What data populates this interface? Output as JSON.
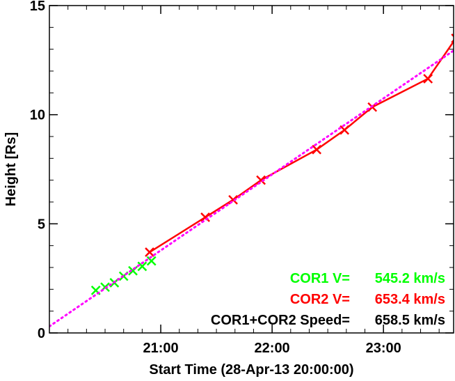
{
  "chart_data": {
    "type": "scatter",
    "xlabel": "Start Time (28-Apr-13 20:00:00)",
    "ylabel": "Height [Rs]",
    "xlim_hours": [
      20.0,
      23.63
    ],
    "ylim": [
      0,
      15
    ],
    "x_ticks": [
      {
        "value": 21,
        "label": "21:00"
      },
      {
        "value": 22,
        "label": "22:00"
      },
      {
        "value": 23,
        "label": "23:00"
      }
    ],
    "y_ticks": [
      {
        "value": 0,
        "label": "0"
      },
      {
        "value": 5,
        "label": "5"
      },
      {
        "value": 10,
        "label": "10"
      },
      {
        "value": 15,
        "label": "15"
      }
    ],
    "series": [
      {
        "name": "COR1",
        "color": "#00ff00",
        "marker": "x",
        "line": false,
        "x": [
          "20:25",
          "20:30",
          "20:35",
          "20:40",
          "20:45",
          "20:50",
          "20:55"
        ],
        "y": [
          1.95,
          2.1,
          2.3,
          2.6,
          2.85,
          3.05,
          3.3
        ]
      },
      {
        "name": "COR2",
        "color": "#ff0000",
        "marker": "x",
        "line": true,
        "x": [
          "20:54",
          "21:24",
          "21:39",
          "21:54",
          "22:24",
          "22:39",
          "22:54",
          "23:24",
          "23:39"
        ],
        "y": [
          3.7,
          5.3,
          6.1,
          7.0,
          8.4,
          9.3,
          10.35,
          11.65,
          13.5
        ]
      },
      {
        "name": "COR1+COR2 fit",
        "color": "#ff00ff",
        "style": "dotted",
        "x": [
          "20:00",
          "23:38"
        ],
        "y": [
          0.3,
          12.95
        ]
      }
    ],
    "annotations": [
      {
        "label": "COR1 V=",
        "value": "545.2 km/s",
        "color": "#00ff00"
      },
      {
        "label": "COR2 V=",
        "value": "653.4 km/s",
        "color": "#ff0000"
      },
      {
        "label": "COR1+COR2 Speed=",
        "value": "658.5 km/s",
        "color": "#000000"
      }
    ]
  }
}
